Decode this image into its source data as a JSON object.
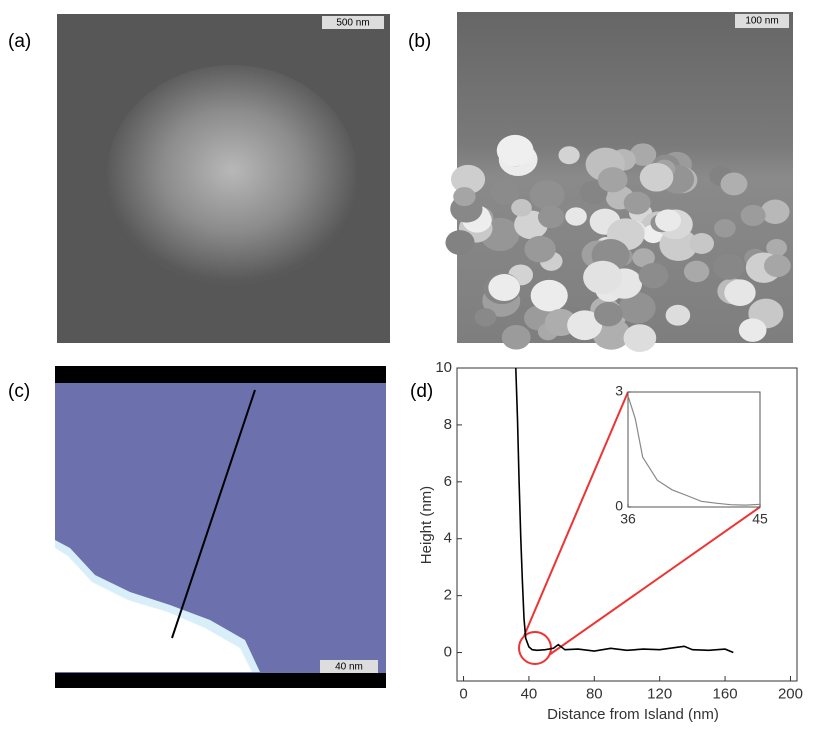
{
  "panels": [
    {
      "label": "(a)",
      "scale_bar": "500 nm"
    },
    {
      "label": "(b)",
      "scale_bar": "100 nm"
    },
    {
      "label": "(c)",
      "scale_bar": "40 nm"
    }
  ],
  "chart_data": {
    "type": "line",
    "label": "(d)",
    "x_label": "Distance from Island (nm)",
    "y_label": "Height (nm)",
    "xlim": [
      -4,
      204
    ],
    "ylim": [
      -1,
      10
    ],
    "xticks": [
      0,
      40,
      80,
      120,
      160,
      200
    ],
    "yticks": [
      0,
      2,
      4,
      6,
      8,
      10
    ],
    "color": "#000000",
    "x": [
      32,
      33,
      34,
      35,
      36,
      37,
      38,
      40,
      42,
      45,
      50,
      55,
      58,
      62,
      70,
      80,
      90,
      100,
      110,
      120,
      130,
      135,
      140,
      150,
      160,
      165
    ],
    "values": [
      10,
      8.2,
      6,
      4,
      2.5,
      1.2,
      0.5,
      0.2,
      0.1,
      0.08,
      0.1,
      0.15,
      0.28,
      0.1,
      0.12,
      0.05,
      0.15,
      0.08,
      0.12,
      0.1,
      0.18,
      0.22,
      0.1,
      0.08,
      0.12,
      0.0
    ],
    "inset": {
      "xlim": [
        36,
        45
      ],
      "ylim": [
        0,
        3
      ],
      "xticks": [
        36,
        45
      ],
      "yticks": [
        0,
        3
      ],
      "color": "#888888",
      "x": [
        36,
        36.5,
        37,
        37.5,
        38,
        39,
        40,
        41,
        42,
        43,
        44,
        45
      ],
      "values": [
        2.9,
        2.3,
        1.3,
        1.0,
        0.7,
        0.45,
        0.3,
        0.15,
        0.1,
        0.06,
        0.05,
        0.07
      ]
    }
  }
}
